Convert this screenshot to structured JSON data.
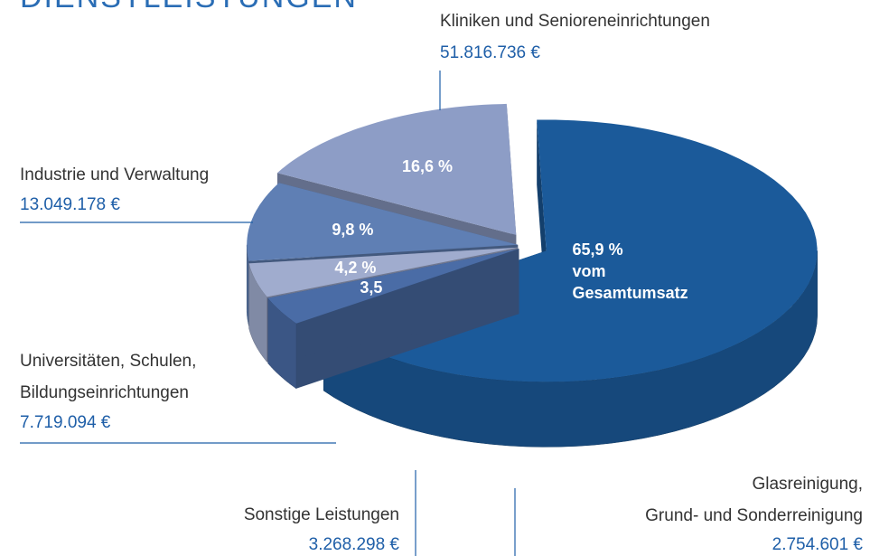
{
  "chart_data": {
    "type": "pie",
    "title": "DIENSTLEISTUNGEN",
    "categories": [
      "Kliniken und Senioreneinrichtungen",
      "Glasreinigung,\nGrund- und Sonderreinigung",
      "Sonstige Leistungen",
      "Universitäten, Schulen,\nBildungseinrichtungen",
      "Industrie und Verwaltung"
    ],
    "amounts": [
      "51.816.736 €",
      "2.754.601 €",
      "3.268.298 €",
      "7.719.094 €",
      "13.049.178 €"
    ],
    "values": [
      65.9,
      3.5,
      4.2,
      9.8,
      16.6
    ],
    "value_labels": [
      "65,9 %",
      "3,5",
      "4,2 %",
      "9,8 %",
      "16,6 %"
    ],
    "annotation": "vom Gesamtumsatz",
    "colors": [
      "#1b5a9a",
      "#4a6ca6",
      "#a0acce",
      "#5f7fb4",
      "#8d9dc6"
    ]
  }
}
